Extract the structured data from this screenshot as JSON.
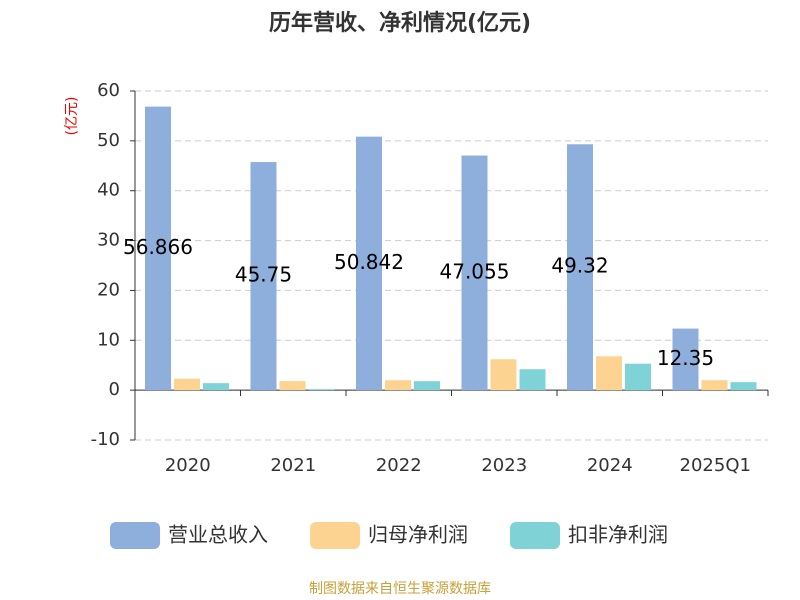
{
  "chart_data": {
    "type": "bar",
    "title": "历年营收、净利情况(亿元)",
    "y_label": "(亿元)",
    "source": "制图数据来自恒生聚源数据库",
    "categories": [
      "2020",
      "2021",
      "2022",
      "2023",
      "2024",
      "2025Q1"
    ],
    "series": [
      {
        "name": "营业总收入",
        "color": "#8eaedb",
        "values": [
          56.866,
          45.75,
          50.842,
          47.055,
          49.32,
          12.35
        ],
        "show_labels": true
      },
      {
        "name": "归母净利润",
        "color": "#fdd391",
        "values": [
          2.3,
          1.8,
          2.0,
          6.2,
          6.8,
          2.0
        ]
      },
      {
        "name": "扣非净利润",
        "color": "#7fd3d6",
        "values": [
          1.4,
          0.2,
          1.8,
          4.2,
          5.3,
          1.6
        ]
      }
    ],
    "ylim": [
      -10,
      60
    ],
    "yticks": [
      -10,
      0,
      10,
      20,
      30,
      40,
      50,
      60
    ],
    "grid": true
  }
}
